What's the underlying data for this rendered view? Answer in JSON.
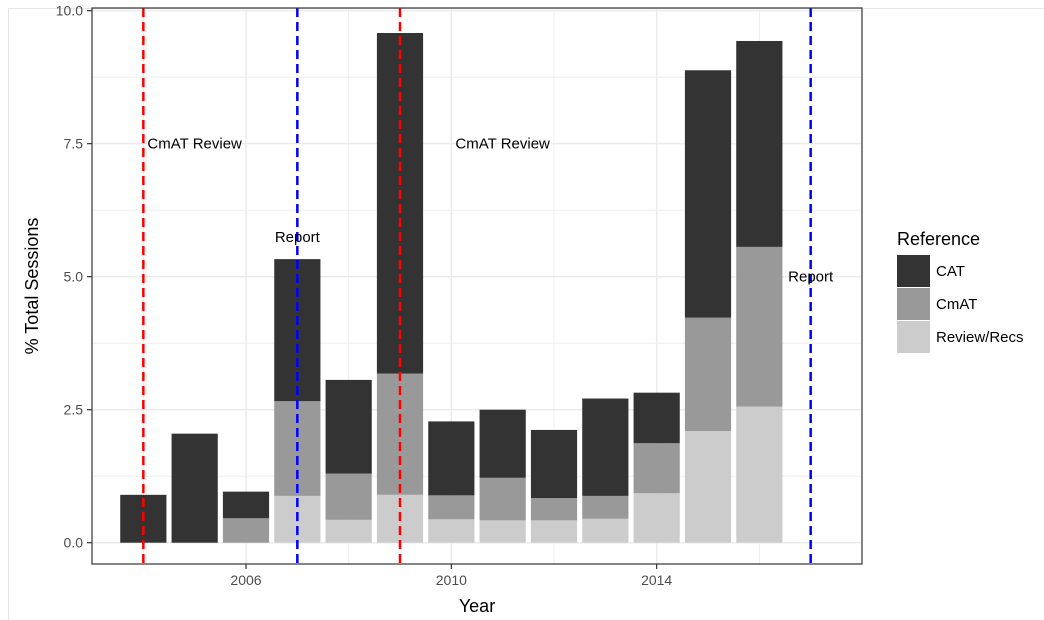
{
  "chart_data": {
    "type": "bar",
    "stacked": true,
    "xlabel": "Year",
    "ylabel": "% Total Sessions",
    "xlim": [
      2003,
      2018
    ],
    "ylim": [
      -0.4,
      10.05
    ],
    "x_ticks": [
      2006,
      2010,
      2014
    ],
    "y_ticks": [
      0.0,
      2.5,
      5.0,
      7.5,
      10.0
    ],
    "y_tick_labels": [
      "0.0",
      "2.5",
      "5.0",
      "7.5",
      "10.0"
    ],
    "grid": true,
    "legend": {
      "title": "Reference",
      "position": "right"
    },
    "x": [
      2004,
      2005,
      2006,
      2007,
      2008,
      2009,
      2010,
      2011,
      2012,
      2013,
      2014,
      2015,
      2016
    ],
    "series": [
      {
        "name": "Review/Recs",
        "color": "#cccccc",
        "values": [
          0,
          0,
          0,
          0.88,
          0.43,
          0.9,
          0.44,
          0.42,
          0.42,
          0.45,
          0.93,
          2.1,
          2.56
        ]
      },
      {
        "name": "CmAT",
        "color": "#999999",
        "values": [
          0,
          0,
          0.46,
          1.78,
          0.87,
          2.28,
          0.45,
          0.8,
          0.42,
          0.43,
          0.94,
          2.13,
          3.0
        ]
      },
      {
        "name": "CAT",
        "color": "#333333",
        "values": [
          0.9,
          2.05,
          0.5,
          2.67,
          1.76,
          6.4,
          1.39,
          1.28,
          1.28,
          1.83,
          0.95,
          4.65,
          3.87
        ]
      }
    ],
    "legend_order": [
      "CAT",
      "CmAT",
      "Review/Recs"
    ],
    "vlines": [
      {
        "x": 2004,
        "color": "#ff0000"
      },
      {
        "x": 2007,
        "color": "#0000ff"
      },
      {
        "x": 2009,
        "color": "#ff0000"
      },
      {
        "x": 2017,
        "color": "#0000ff"
      }
    ],
    "annotations": [
      {
        "text": "CmAT Review",
        "x": 2005,
        "y": 7.5
      },
      {
        "text": "Report",
        "x": 2007,
        "y": 5.75
      },
      {
        "text": "CmAT Review",
        "x": 2011,
        "y": 7.5
      },
      {
        "text": "Report",
        "x": 2017,
        "y": 5.0
      }
    ]
  }
}
